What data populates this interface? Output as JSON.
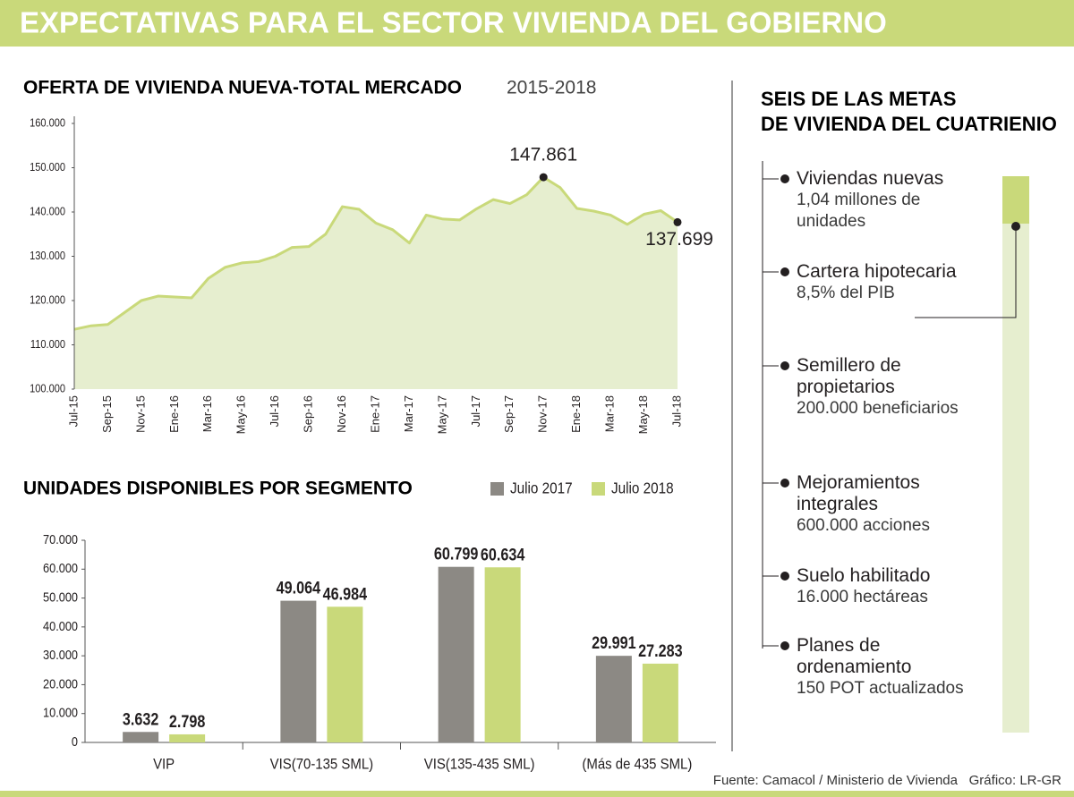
{
  "header": {
    "title": "EXPECTATIVAS PARA EL SECTOR VIVIENDA DEL GOBIERNO"
  },
  "chart_data": [
    {
      "type": "line",
      "title": "OFERTA DE VIVIENDA NUEVA-TOTAL MERCADO",
      "subtitle": "2015-2018",
      "categories": [
        "Jul-15",
        null,
        "Sep-15",
        null,
        "Nov-15",
        null,
        "Ene-16",
        null,
        "Mar-16",
        null,
        "May-16",
        null,
        "Jul-16",
        null,
        "Sep-16",
        null,
        "Nov-16",
        null,
        "Ene-17",
        null,
        "Mar-17",
        null,
        "May-17",
        null,
        "Jul-17",
        null,
        "Sep-17",
        null,
        "Nov-17",
        null,
        "Ene-18",
        null,
        "Mar-18",
        null,
        "May-18",
        null,
        "Jul-18"
      ],
      "values": [
        113500,
        114300,
        114600,
        117300,
        120000,
        121000,
        120800,
        120600,
        125000,
        127500,
        128500,
        128800,
        130000,
        132000,
        132200,
        135000,
        141200,
        140600,
        137500,
        136000,
        133000,
        139300,
        138400,
        138200,
        140700,
        142800,
        141900,
        143900,
        147861,
        145500,
        140800,
        140200,
        139300,
        137200,
        139500,
        140300,
        137699
      ],
      "value_labels": [
        null,
        null,
        null,
        null,
        null,
        null,
        null,
        null,
        null,
        null,
        null,
        null,
        null,
        null,
        null,
        null,
        null,
        null,
        null,
        null,
        null,
        null,
        null,
        null,
        null,
        null,
        null,
        null,
        "147.861",
        null,
        null,
        null,
        null,
        null,
        null,
        null,
        "137.699"
      ],
      "color": "#c9d97a",
      "area_color": "#e6eecf",
      "ylim": [
        100000,
        160000
      ],
      "yticks": [
        {
          "value": 100000,
          "label": "100.000"
        },
        {
          "value": 110000,
          "label": "110.000"
        },
        {
          "value": 120000,
          "label": "120.000"
        },
        {
          "value": 130000,
          "label": "130.000"
        },
        {
          "value": 140000,
          "label": "140.000"
        },
        {
          "value": 150000,
          "label": "150.000"
        },
        {
          "value": 160000,
          "label": "160.000"
        }
      ],
      "grid": false
    },
    {
      "type": "bar",
      "title": "UNIDADES DISPONIBLES POR SEGMENTO",
      "categories": [
        "VIP",
        "VIS(70-135 SML)",
        "VIS(135-435 SML)",
        "(Más de 435 SML)"
      ],
      "series": [
        {
          "name": "Julio 2017",
          "color": "#8c8984",
          "values": [
            3632,
            49064,
            60799,
            29991
          ],
          "value_labels": [
            "3.632",
            "49.064",
            "60.799",
            "29.991"
          ]
        },
        {
          "name": "Julio 2018",
          "color": "#c9d97a",
          "values": [
            2798,
            46984,
            60634,
            27283
          ],
          "value_labels": [
            "2.798",
            "46.984",
            "60.634",
            "27.283"
          ]
        }
      ],
      "ylim": [
        0,
        70000
      ],
      "yticks": [
        0,
        {
          "value": 10000,
          "label": "10.000"
        },
        {
          "value": 20000,
          "label": "20.000"
        },
        {
          "value": 30000,
          "label": "30.000"
        },
        {
          "value": 40000,
          "label": "40.000"
        },
        {
          "value": 50000,
          "label": "50.000"
        },
        {
          "value": 60000,
          "label": "60.000"
        },
        {
          "value": 70000,
          "label": "70.000"
        }
      ],
      "grid": false
    }
  ],
  "goals": {
    "title": "SEIS DE LAS METAS DE VIVIENDA DEL CUATRIENIO",
    "items": [
      {
        "title": "Viviendas nuevas",
        "detail": "1,04 millones de unidades"
      },
      {
        "title": "Cartera hipotecaria",
        "detail": "8,5% del PIB"
      },
      {
        "title": "Semillero de propietarios",
        "detail": "200.000 beneficiarios"
      },
      {
        "title": "Mejoramientos integrales",
        "detail": "600.000 acciones"
      },
      {
        "title": "Suelo habilitado",
        "detail": "16.000 hectáreas"
      },
      {
        "title": "Planes de ordenamiento",
        "detail": "150 POT actualizados"
      }
    ]
  },
  "footer": {
    "source": "Fuente: Camacol / Ministerio de Vivienda",
    "credit": "Gráfico: LR-GR"
  }
}
